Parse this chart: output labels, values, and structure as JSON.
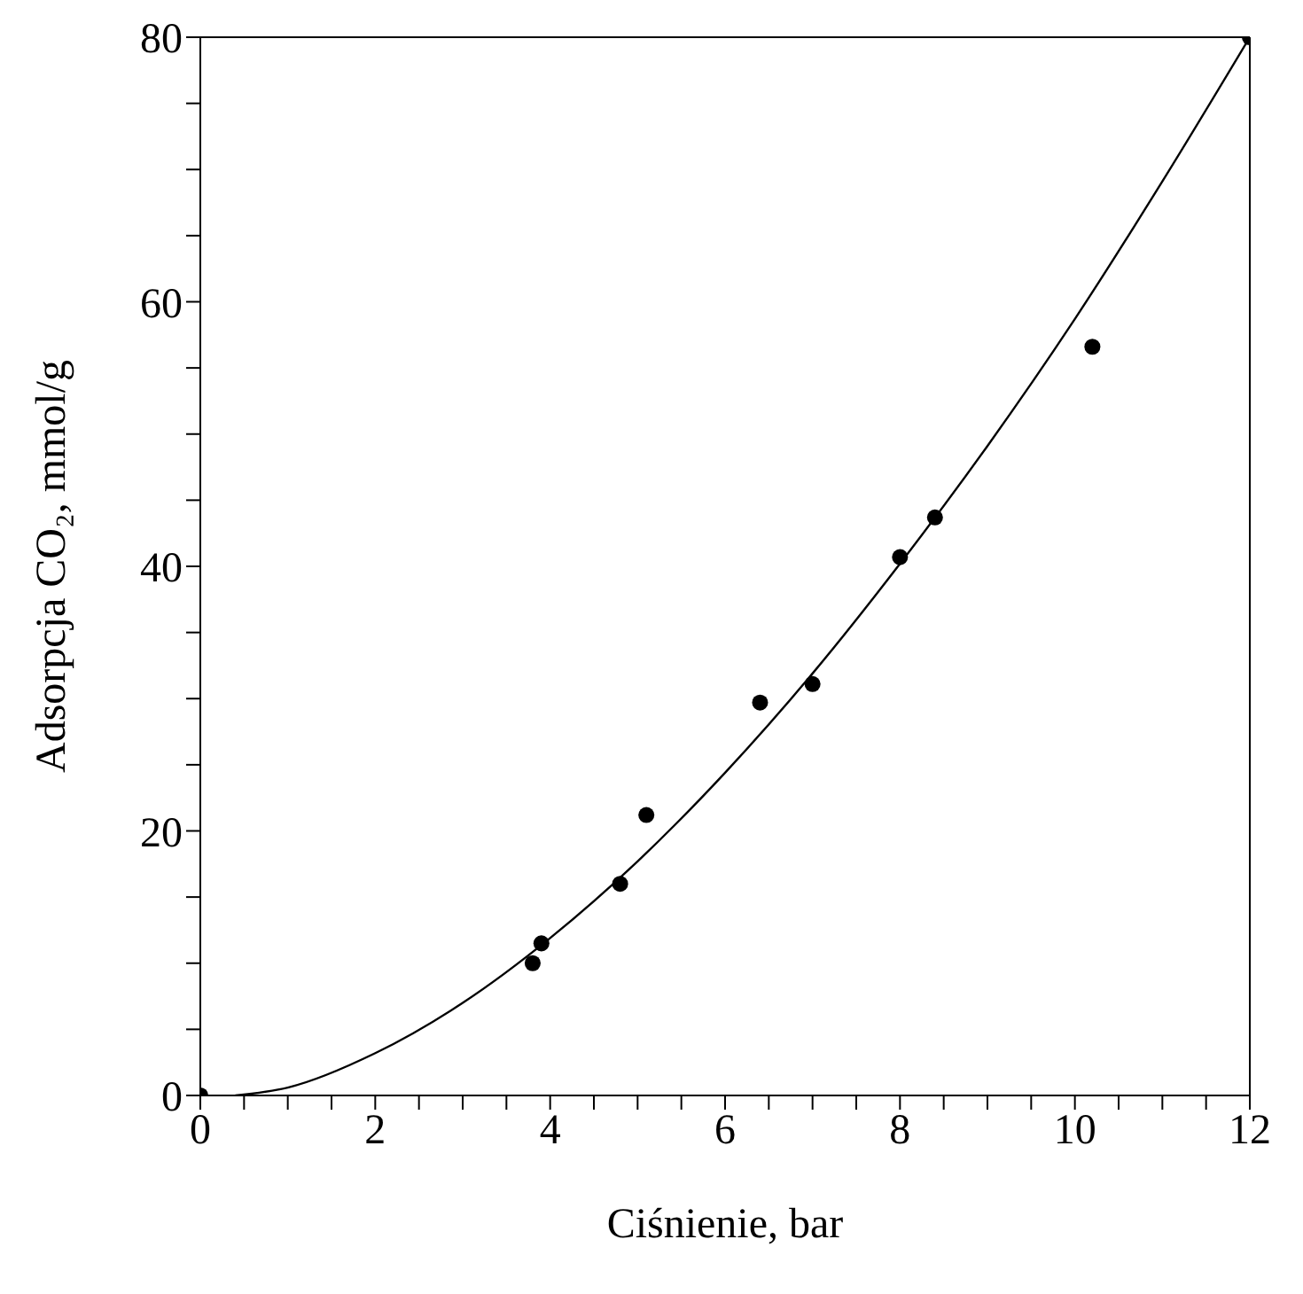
{
  "chart_data": {
    "type": "scatter",
    "xlabel": "Ciśnienie, bar",
    "ylabel": "Adsorpcja CO₂, mmol/g",
    "xlim": [
      0,
      12
    ],
    "ylim": [
      0,
      80
    ],
    "xticks": [
      0,
      {
        "value": 0.5,
        "label": null
      },
      {
        "value": 1,
        "label": null
      },
      {
        "value": 1.5,
        "label": null
      },
      2,
      {
        "value": 2.5,
        "label": null
      },
      {
        "value": 3,
        "label": null
      },
      {
        "value": 3.5,
        "label": null
      },
      4,
      {
        "value": 4.5,
        "label": null
      },
      {
        "value": 5,
        "label": null
      },
      {
        "value": 5.5,
        "label": null
      },
      6,
      {
        "value": 6.5,
        "label": null
      },
      {
        "value": 7,
        "label": null
      },
      {
        "value": 7.5,
        "label": null
      },
      8,
      {
        "value": 8.5,
        "label": null
      },
      {
        "value": 9,
        "label": null
      },
      {
        "value": 9.5,
        "label": null
      },
      10,
      {
        "value": 10.5,
        "label": null
      },
      {
        "value": 11,
        "label": null
      },
      {
        "value": 11.5,
        "label": null
      },
      12
    ],
    "yticks": [
      0,
      {
        "value": 5,
        "label": null
      },
      {
        "value": 10,
        "label": null
      },
      {
        "value": 15,
        "label": null
      },
      20,
      {
        "value": 25,
        "label": null
      },
      {
        "value": 30,
        "label": null
      },
      {
        "value": 35,
        "label": null
      },
      40,
      {
        "value": 45,
        "label": null
      },
      {
        "value": 50,
        "label": null
      },
      {
        "value": 55,
        "label": null
      },
      60,
      {
        "value": 65,
        "label": null
      },
      {
        "value": 70,
        "label": null
      },
      {
        "value": 75,
        "label": null
      },
      80
    ],
    "grid": false,
    "line_style": "solid",
    "series": [
      {
        "marker": "circle",
        "color": "#000000",
        "x": [
          0,
          3.8,
          3.9,
          4.8,
          5.1,
          6.4,
          7.0,
          8.0,
          8.4,
          10.2,
          12
        ],
        "values": [
          0,
          10,
          11.5,
          16,
          21.2,
          29.7,
          31.1,
          40.7,
          43.7,
          56.6,
          80
        ]
      },
      {
        "type": "line",
        "color": "#000000",
        "x": [
          0.4,
          1,
          2,
          3,
          4,
          5,
          6,
          7,
          8,
          9,
          10,
          11,
          12
        ],
        "values": [
          0,
          0.6,
          3.2,
          7.0,
          11.9,
          17.7,
          24.4,
          31.9,
          40.2,
          49.1,
          58.7,
          69.1,
          80
        ]
      }
    ]
  }
}
